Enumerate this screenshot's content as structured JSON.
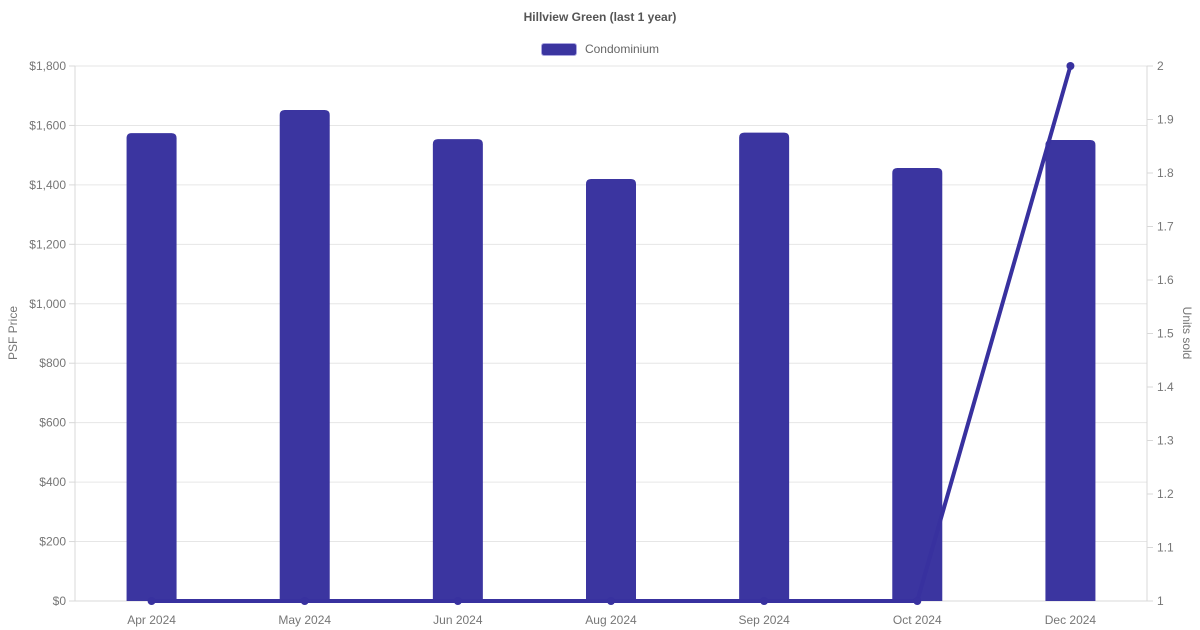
{
  "page": {
    "background": "#ffffff"
  },
  "chart": {
    "title": "Hillview Green (last 1 year)",
    "legend": {
      "label": "Condominium",
      "swatch_color": "#3b35a0"
    }
  },
  "chart_data": {
    "type": "bar",
    "title": "Hillview Green (last 1 year)",
    "categories": [
      "Apr 2024",
      "May 2024",
      "Jun 2024",
      "Aug 2024",
      "Sep 2024",
      "Oct 2024",
      "Dec 2024"
    ],
    "series": [
      {
        "name": "Condominium",
        "type": "bar",
        "yaxis": "left",
        "color": "#3b35a0",
        "values": [
          1574,
          1652,
          1554,
          1420,
          1576,
          1457,
          1551
        ]
      },
      {
        "name": "Units sold",
        "type": "line",
        "yaxis": "right",
        "color": "#38319f",
        "values": [
          1,
          1,
          1,
          1,
          1,
          1,
          2
        ]
      }
    ],
    "left_axis": {
      "label": "PSF Price",
      "min": 0,
      "max": 1800,
      "step": 200,
      "tick_labels": [
        "$0",
        "$200",
        "$400",
        "$600",
        "$800",
        "$1,000",
        "$1,200",
        "$1,400",
        "$1,600",
        "$1,800"
      ]
    },
    "right_axis": {
      "label": "Units sold",
      "min": 1,
      "max": 2,
      "step": 0.1,
      "tick_labels": [
        "1",
        "1.1",
        "1.2",
        "1.3",
        "1.4",
        "1.5",
        "1.6",
        "1.7",
        "1.8",
        "1.9",
        "2"
      ]
    },
    "grid": true,
    "legend_position": "top-center"
  },
  "colors": {
    "bar": "#3b35a0",
    "line": "#38319f",
    "grid_line": "#e6e6e6",
    "axis_line": "#d8d8d8",
    "tick_text": "#767676",
    "title_text": "#555555",
    "legend_text": "#666666",
    "background": "#ffffff"
  }
}
